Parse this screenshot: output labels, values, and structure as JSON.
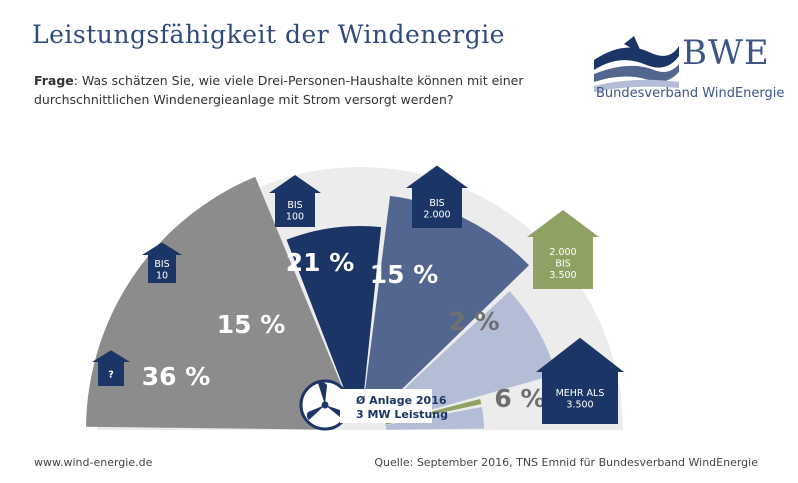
{
  "header": {
    "title": "Leistungsfähigkeit der Windenergie",
    "question_label": "Frage",
    "question_text": ": Was schätzen Sie, wie viele Drei-Personen-Haushalte können mit einer durchschnittlichen Windenergieanlage mit Strom versorgt werden?"
  },
  "logo": {
    "name": "BWE",
    "subtitle": "Bundesverband WindEnergie"
  },
  "center": {
    "icon": "wind-turbine-icon",
    "line1": "Ø Anlage 2016",
    "line2": "3 MW Leistung"
  },
  "footer": {
    "website": "www.wind-energie.de",
    "source": "Quelle: September 2016, TNS Emnid für Bundesverband WindEnergie"
  },
  "colors": {
    "grey": "#8c8c8c",
    "navy": "#1c3567",
    "slate": "#52668f",
    "light_blue": "#b3bdd5",
    "green": "#8fa263",
    "background_arc": "#ececec"
  },
  "chart_data": {
    "type": "pie",
    "categories": [
      "?",
      "BIS 10",
      "BIS 100",
      "BIS 2.000",
      "2.000 BIS 3.500",
      "MEHR ALS 3.500"
    ],
    "values": [
      36,
      15,
      21,
      15,
      2,
      6
    ],
    "value_labels": [
      "36 %",
      "15 %",
      "21 %",
      "15 %",
      "2 %",
      "6 %"
    ],
    "category_lines": [
      [
        "?"
      ],
      [
        "BIS",
        "10"
      ],
      [
        "BIS",
        "100"
      ],
      [
        "BIS",
        "2.000"
      ],
      [
        "2.000",
        "BIS",
        "3.500"
      ],
      [
        "MEHR ALS",
        "3.500"
      ]
    ],
    "colors": [
      "#8c8c8c",
      "#1c3567",
      "#52668f",
      "#b3bdd5",
      "#8fa263",
      "#b3bdd5"
    ],
    "arrow_colors": [
      "#1c3567",
      "#1c3567",
      "#1c3567",
      "#1c3567",
      "#8fa263",
      "#1c3567"
    ],
    "label_colors": [
      "#ffffff",
      "#ffffff",
      "#ffffff",
      "#ffffff",
      "#6f6f6f",
      "#6f6f6f"
    ],
    "unit": "%"
  }
}
